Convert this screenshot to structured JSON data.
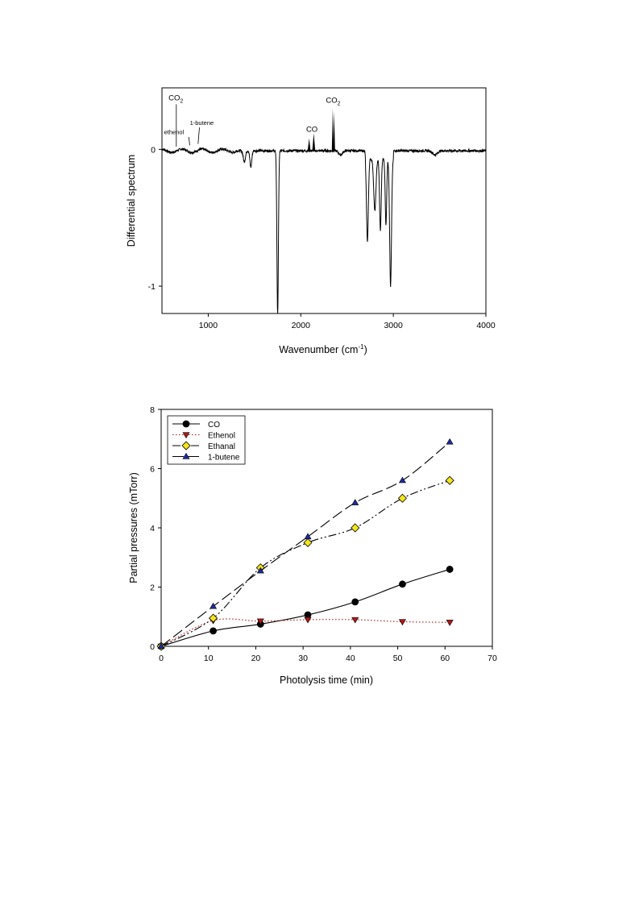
{
  "chart_data": [
    {
      "type": "line",
      "xlabel": "Wavenumber (cm",
      "xlabel_sup": "-1",
      "xlabel_end": ")",
      "ylabel": "Differential spectrum",
      "xlim": [
        500,
        4000
      ],
      "ylim": [
        -1.2,
        0.45
      ],
      "xticks": [
        1000,
        2000,
        3000,
        4000
      ],
      "yticks": [
        0,
        -1
      ],
      "grid": false,
      "legend": "none",
      "peaks_negative": [
        {
          "x": 1390,
          "y": -0.08
        },
        {
          "x": 1460,
          "y": -0.12
        },
        {
          "x": 1750,
          "y": -1.2
        },
        {
          "x": 2430,
          "y": -0.03
        },
        {
          "x": 2720,
          "y": -0.6
        },
        {
          "x": 2800,
          "y": -0.38
        },
        {
          "x": 2860,
          "y": -0.52
        },
        {
          "x": 2920,
          "y": -0.48
        },
        {
          "x": 2970,
          "y": -0.93
        },
        {
          "x": 3450,
          "y": -0.03
        }
      ],
      "peaks_filled": [
        {
          "x": 2090,
          "y": 0.08
        },
        {
          "x": 2140,
          "y": 0.12
        },
        {
          "x": 2345,
          "y": 0.3
        },
        {
          "x": 2360,
          "y": 0.28
        }
      ],
      "annotations": [
        {
          "label": "CO",
          "sub": "2",
          "x": 650,
          "y": 0.36
        },
        {
          "label": "ethenol",
          "sub": "",
          "x": 630,
          "y": 0.11
        },
        {
          "label": "1-butene",
          "sub": "",
          "x": 930,
          "y": 0.18
        },
        {
          "label": "CO",
          "sub": "",
          "x": 2120,
          "y": 0.13
        },
        {
          "label": "CO",
          "sub": "2",
          "x": 2350,
          "y": 0.34
        }
      ]
    },
    {
      "type": "line",
      "xlabel": "Photolysis time (min)",
      "ylabel": "Partial pressures (mTorr)",
      "xlim": [
        0,
        70
      ],
      "ylim": [
        0,
        8
      ],
      "xticks": [
        0,
        10,
        20,
        30,
        40,
        50,
        60,
        70
      ],
      "yticks": [
        0,
        2,
        4,
        6,
        8
      ],
      "grid": false,
      "legend": "top-left",
      "series": [
        {
          "name": "CO",
          "x": [
            0,
            11,
            21,
            31,
            41,
            51,
            61
          ],
          "values": [
            0,
            0.52,
            0.75,
            1.06,
            1.5,
            2.1,
            2.6
          ],
          "color": "#000000",
          "marker": "circle",
          "dash": ""
        },
        {
          "name": "Ethenol",
          "x": [
            0,
            11,
            21,
            31,
            41,
            51,
            61
          ],
          "values": [
            0,
            0.87,
            0.85,
            0.9,
            0.9,
            0.83,
            0.81
          ],
          "color": "#b01818",
          "marker": "triangle-down",
          "dash": "1.5,2.5"
        },
        {
          "name": "Ethanal",
          "x": [
            0,
            11,
            21,
            31,
            41,
            51,
            61
          ],
          "values": [
            0,
            0.95,
            2.65,
            3.5,
            4.0,
            5.0,
            5.6
          ],
          "color": "#f3e51c",
          "marker": "diamond",
          "dash": "10,3,2,3,2,3"
        },
        {
          "name": "1-butene",
          "x": [
            0,
            11,
            21,
            31,
            41,
            51,
            61
          ],
          "values": [
            0,
            1.35,
            2.55,
            3.7,
            4.85,
            5.6,
            6.9
          ],
          "color": "#1e2aa0",
          "marker": "triangle-up",
          "dash": "14,5"
        }
      ]
    }
  ]
}
